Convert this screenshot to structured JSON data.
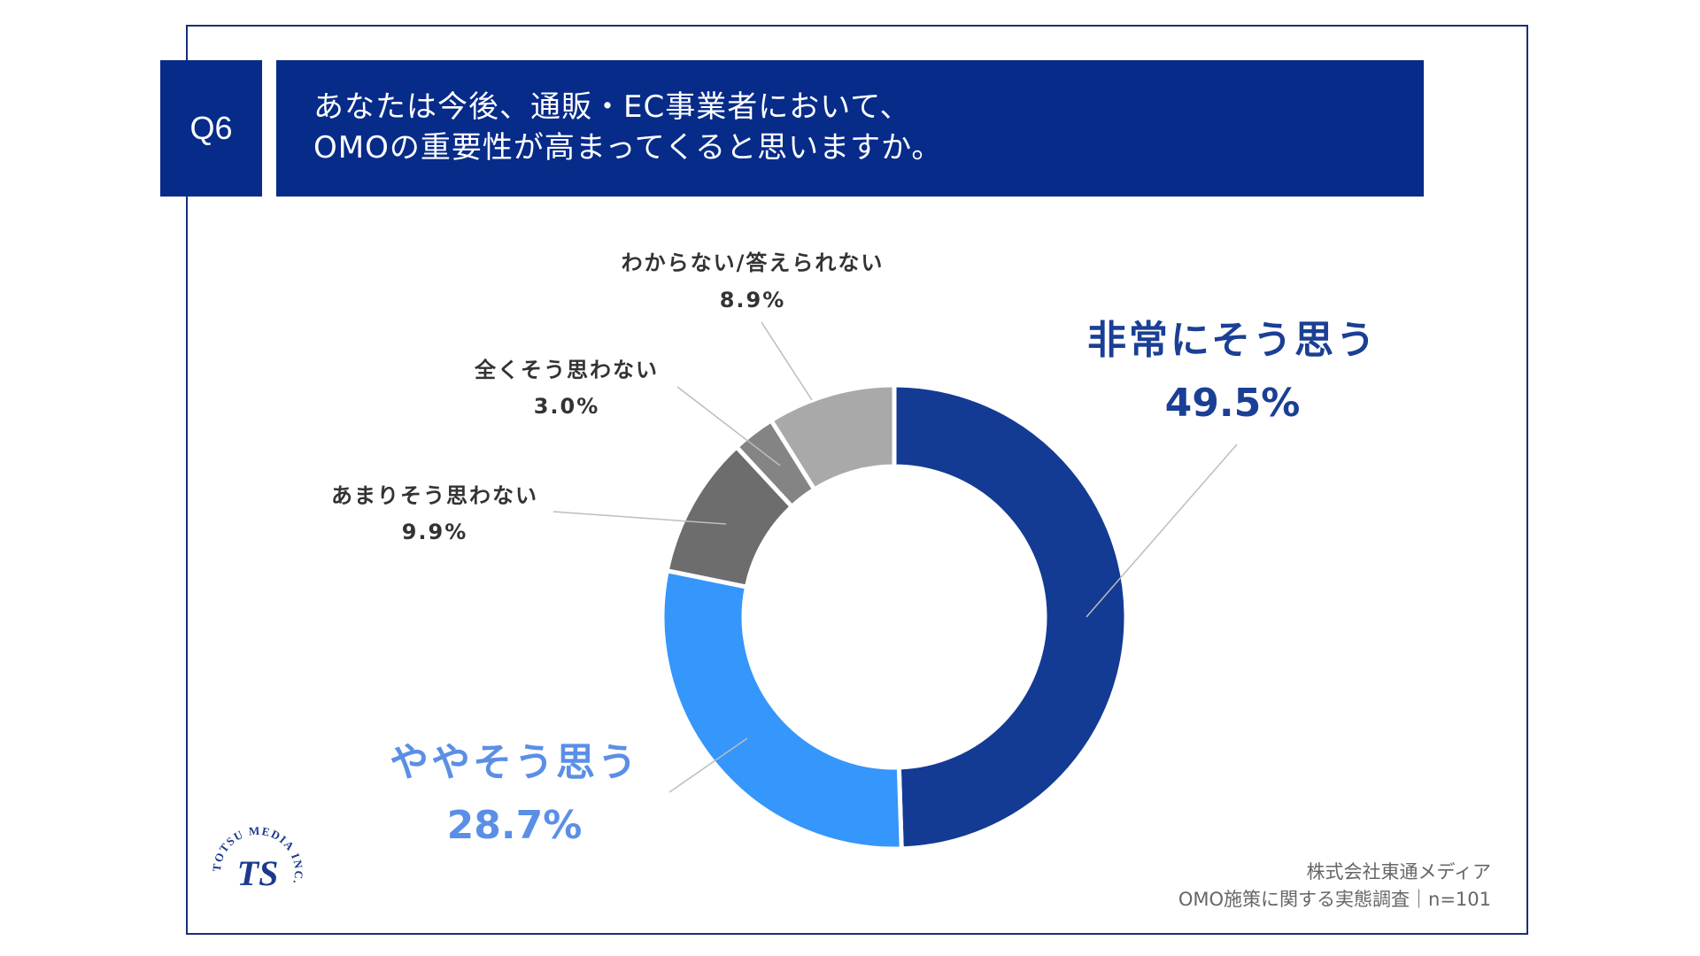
{
  "question": {
    "id": "Q6",
    "title_lines": [
      "あなたは今後、通販・EC事業者において、",
      "OMOの重要性が高まってくると思いますか。"
    ]
  },
  "chart_data": {
    "type": "pie",
    "donut": true,
    "title": "あなたは今後、通販・EC事業者において、OMOの重要性が高まってくると思いますか。",
    "categories": [
      "非常にそう思う",
      "ややそう思う",
      "あまりそう思わない",
      "全くそう思わない",
      "わからない/答えられない"
    ],
    "values": [
      49.5,
      28.7,
      9.9,
      3.0,
      8.9
    ],
    "value_labels": [
      "49.5%",
      "28.7%",
      "9.9%",
      "3.0%",
      "8.9%"
    ],
    "colors": [
      "#133b94",
      "#3596fb",
      "#6d6d6d",
      "#848484",
      "#a9a9a9"
    ],
    "label_colors": [
      "#1a3f94",
      "#5b8fe6",
      "#333333",
      "#333333",
      "#333333"
    ],
    "start_angle": "12 o'clock",
    "direction": "clockwise"
  },
  "source": {
    "line1": "株式会社東通メディア",
    "line2": "OMO施策に関する実態調査｜n=101"
  },
  "logo": {
    "text": "TOTSU MEDIA INC.",
    "mark": "TS"
  }
}
